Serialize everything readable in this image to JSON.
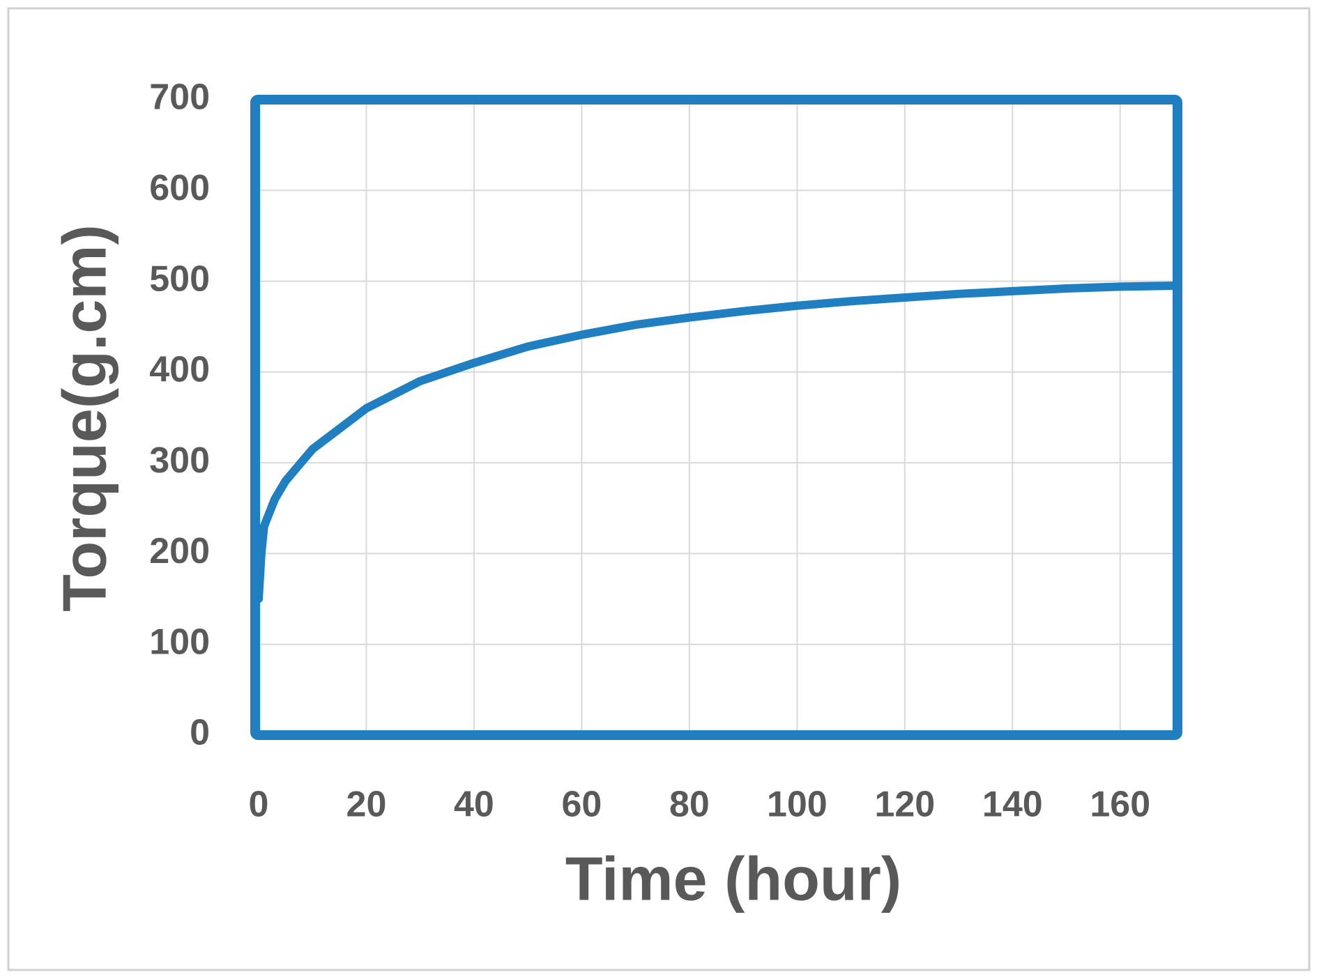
{
  "chart_data": {
    "type": "line",
    "x_label": "Time (hour)",
    "y_label": "Torque(g.cm)",
    "series": [
      {
        "name": "Torque",
        "color": "#1f7fc1",
        "x": [
          0,
          0.5,
          1,
          3,
          5,
          10,
          20,
          30,
          40,
          50,
          60,
          70,
          80,
          90,
          100,
          110,
          120,
          130,
          140,
          150,
          160,
          170
        ],
        "values": [
          150,
          200,
          230,
          260,
          280,
          315,
          360,
          390,
          410,
          428,
          441,
          452,
          460,
          467,
          473,
          478,
          482,
          486,
          489,
          492,
          494,
          495
        ]
      }
    ],
    "xlim": [
      0,
      170
    ],
    "ylim": [
      0,
      700
    ],
    "xticks": [
      0,
      20,
      40,
      60,
      80,
      100,
      120,
      140,
      160
    ],
    "yticks": [
      0,
      100,
      200,
      300,
      400,
      500,
      600,
      700
    ],
    "grid": true,
    "frame_color": "#1f7fc1"
  }
}
